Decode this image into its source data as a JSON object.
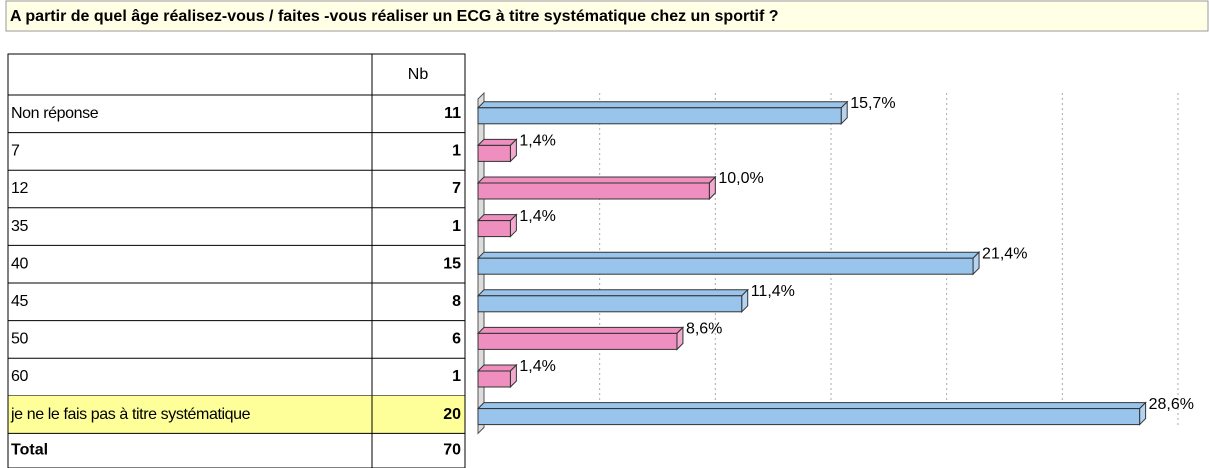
{
  "chart_data": {
    "type": "bar",
    "title": "A partir de quel âge réalisez-vous / faites -vous réaliser un ECG à titre systématique chez un sportif ?",
    "count_header": "Nb",
    "categories": [
      "Non réponse",
      "7",
      "12",
      "35",
      "40",
      "45",
      "50",
      "60",
      "je ne le fais pas à titre systématique"
    ],
    "counts": [
      11,
      1,
      7,
      1,
      15,
      8,
      6,
      1,
      20
    ],
    "values": [
      15.7,
      1.4,
      10.0,
      1.4,
      21.4,
      11.4,
      8.6,
      1.4,
      28.6
    ],
    "value_labels": [
      "15,7%",
      "1,4%",
      "10,0%",
      "1,4%",
      "21,4%",
      "11,4%",
      "8,6%",
      "1,4%",
      "28,6%"
    ],
    "colors": [
      "#99c4ec",
      "#ee8fbf",
      "#ee8fbf",
      "#ee8fbf",
      "#99c4ec",
      "#99c4ec",
      "#ee8fbf",
      "#ee8fbf",
      "#99c4ec"
    ],
    "total_label": "Total",
    "total": 70,
    "xlim": [
      0,
      30
    ],
    "xticks": [
      0,
      5,
      10,
      15,
      20,
      25,
      30
    ],
    "grid": true
  }
}
